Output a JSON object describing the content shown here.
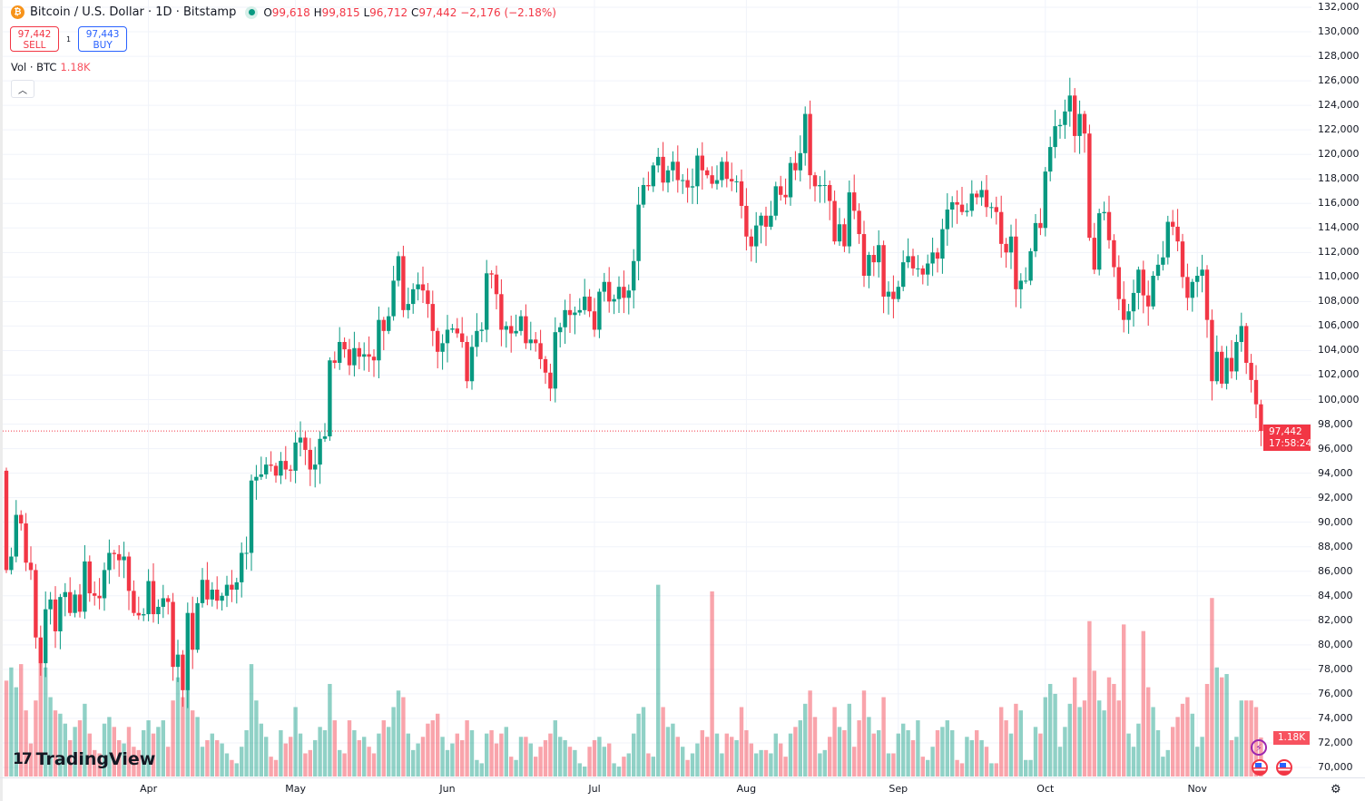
{
  "header": {
    "title": "Bitcoin / U.S. Dollar · 1D · Bitstamp",
    "open_label": "O",
    "open": "99,618",
    "high_label": "H",
    "high": "99,815",
    "low_label": "L",
    "low": "96,712",
    "close_label": "C",
    "close": "97,442",
    "change": "−2,176 (−2.18%)"
  },
  "trade": {
    "sell_price": "97,442",
    "sell_label": "SELL",
    "spread": "1",
    "buy_price": "97,443",
    "buy_label": "BUY"
  },
  "volume_legend": {
    "label": "Vol · BTC",
    "value": "1.18K"
  },
  "price_tag": {
    "price": "97,442",
    "countdown": "17:58:24"
  },
  "volume_tag": "1.18K",
  "watermark": "TradingView",
  "colors": {
    "up": "#089981",
    "down": "#f23645",
    "grid": "#f0f3fa"
  },
  "icons": [
    "bitcoin-icon",
    "live-dot-icon",
    "chevron-up-icon",
    "lightning-icon",
    "us-flag-icon",
    "settings-icon"
  ],
  "chart_data": {
    "type": "candlestick",
    "interval": "1D",
    "start_date": "2025-03-03",
    "end_date": "2025-11-14",
    "first_open": 94200,
    "y_ticks": [
      "132,000",
      "130,000",
      "128,000",
      "126,000",
      "124,000",
      "122,000",
      "120,000",
      "118,000",
      "116,000",
      "114,000",
      "112,000",
      "110,000",
      "108,000",
      "106,000",
      "104,000",
      "102,000",
      "100,000",
      "98,000",
      "96,000",
      "94,000",
      "92,000",
      "90,000",
      "88,000",
      "86,000",
      "84,000",
      "82,000",
      "80,000",
      "78,000",
      "76,000",
      "74,000",
      "72,000",
      "70,000"
    ],
    "ylim": [
      70000,
      132000
    ],
    "x_ticks": [
      "Apr",
      "May",
      "Jun",
      "Jul",
      "Aug",
      "Sep",
      "Oct",
      "Nov"
    ],
    "close": [
      86100,
      87200,
      90600,
      89900,
      86700,
      86100,
      80600,
      78500,
      82900,
      83700,
      81100,
      83900,
      84300,
      82600,
      84100,
      82700,
      86800,
      84200,
      84000,
      83800,
      86100,
      87500,
      87400,
      86900,
      87200,
      84400,
      82600,
      82400,
      82500,
      85200,
      82500,
      83100,
      83800,
      83500,
      78200,
      79200,
      76300,
      82600,
      79600,
      83400,
      85300,
      83700,
      84500,
      83600,
      84000,
      84900,
      84500,
      85100,
      87500,
      87500,
      93400,
      93700,
      93900,
      94700,
      94600,
      93800,
      95000,
      94300,
      94200,
      96500,
      96900,
      95900,
      94300,
      94700,
      96800,
      97000,
      103200,
      103000,
      104700,
      104100,
      102800,
      104200,
      103500,
      103700,
      103500,
      103200,
      106500,
      105600,
      106800,
      109700,
      111700,
      107300,
      107800,
      109000,
      109400,
      108900,
      107800,
      105600,
      103900,
      104600,
      105700,
      105800,
      105400,
      104700,
      101500,
      104300,
      105600,
      105700,
      110300,
      110200,
      108600,
      105700,
      106000,
      105400,
      105600,
      106800,
      104600,
      104900,
      104600,
      103300,
      102200,
      100900,
      105500,
      105900,
      107300,
      106900,
      107100,
      107300,
      108400,
      107200,
      105700,
      108800,
      109600,
      108000,
      108200,
      109200,
      108300,
      108900,
      111300,
      115900,
      117500,
      117400,
      119100,
      119800,
      117700,
      118700,
      119400,
      117900,
      117900,
      117300,
      117400,
      119900,
      118700,
      118300,
      117600,
      117900,
      119400,
      118000,
      117800,
      117800,
      115800,
      113300,
      112500,
      114200,
      115000,
      114100,
      115000,
      117400,
      116700,
      116500,
      119300,
      118700,
      120100,
      123300,
      118300,
      117400,
      117500,
      117500,
      116200,
      112900,
      114300,
      112500,
      116900,
      115400,
      113500,
      110100,
      111800,
      111200,
      112600,
      108400,
      108800,
      108200,
      109200,
      111200,
      111700,
      110700,
      110700,
      110200,
      111100,
      112000,
      111500,
      113900,
      115500,
      116100,
      115900,
      115300,
      115400,
      116800,
      116500,
      117100,
      115700,
      115700,
      115300,
      112700,
      112000,
      113300,
      109000,
      109700,
      109700,
      112100,
      114400,
      114000,
      118600,
      120600,
      122300,
      122400,
      123500,
      124800,
      121500,
      123300,
      121700,
      113200,
      110600,
      115200,
      115300,
      113000,
      110800,
      108200,
      106500,
      107200,
      108700,
      110600,
      108500,
      107600,
      110100,
      111000,
      111600,
      114500,
      114100,
      112900,
      110000,
      108300,
      109600,
      110100,
      110600,
      106500,
      101500,
      103900,
      101300,
      103400,
      102300,
      104700,
      106000,
      103000,
      101600,
      99618,
      97442
    ],
    "volume_btc": [
      2900,
      3300,
      2700,
      3400,
      2000,
      1000,
      2300,
      3900,
      3300,
      2400,
      2000,
      1900,
      1600,
      1100,
      1500,
      1700,
      2200,
      1300,
      800,
      700,
      1600,
      1800,
      1500,
      1100,
      1000,
      1500,
      900,
      800,
      1400,
      1700,
      1300,
      1500,
      1700,
      900,
      2300,
      3000,
      2400,
      3500,
      2000,
      1800,
      900,
      1100,
      1300,
      1100,
      1000,
      700,
      500,
      400,
      900,
      1400,
      3400,
      2300,
      1600,
      1200,
      600,
      500,
      1400,
      1000,
      1200,
      2100,
      1300,
      700,
      800,
      1100,
      1500,
      1400,
      2800,
      1700,
      800,
      700,
      1700,
      1400,
      1100,
      1200,
      900,
      700,
      1300,
      1700,
      1500,
      2100,
      2600,
      2400,
      1300,
      800,
      1000,
      1200,
      1600,
      1700,
      1900,
      1200,
      800,
      1000,
      1300,
      1100,
      1700,
      1400,
      500,
      400,
      1300,
      1400,
      1000,
      1300,
      1500,
      600,
      500,
      1200,
      1200,
      1000,
      600,
      900,
      1100,
      1300,
      1700,
      1200,
      1100,
      900,
      800,
      400,
      300,
      900,
      1100,
      1200,
      900,
      1000,
      400,
      300,
      600,
      700,
      1300,
      1900,
      2100,
      700,
      600,
      5800,
      2100,
      1500,
      1600,
      1200,
      900,
      500,
      700,
      1000,
      1400,
      1200,
      5600,
      1300,
      700,
      1300,
      1200,
      1100,
      2100,
      1400,
      1000,
      700,
      800,
      800,
      700,
      1300,
      1000,
      600,
      1300,
      1500,
      1700,
      2200,
      2600,
      1800,
      700,
      800,
      1200,
      2100,
      1500,
      1400,
      2200,
      900,
      1700,
      2600,
      1800,
      1300,
      1400,
      2400,
      700,
      700,
      1300,
      1600,
      1400,
      1100,
      1700,
      600,
      500,
      900,
      1400,
      1500,
      1700,
      1400,
      500,
      400,
      1200,
      1100,
      1400,
      1100,
      900,
      400,
      400,
      2100,
      1700,
      1300,
      2200,
      2000,
      500,
      500,
      1500,
      1300,
      2400,
      2800,
      2500,
      900,
      1500,
      2200,
      3000,
      2100,
      2300,
      4700,
      3200,
      2300,
      2000,
      3000,
      2800,
      2300,
      4600,
      1300,
      900,
      1600,
      4400,
      2700,
      2100,
      1400,
      600,
      800,
      1500,
      1800,
      2200,
      2400,
      1900,
      900,
      1200,
      2800,
      5400,
      3300,
      3000,
      3100,
      1100,
      1200,
      2300,
      2300,
      2300,
      2100,
      1180
    ],
    "last_price": 97442
  }
}
